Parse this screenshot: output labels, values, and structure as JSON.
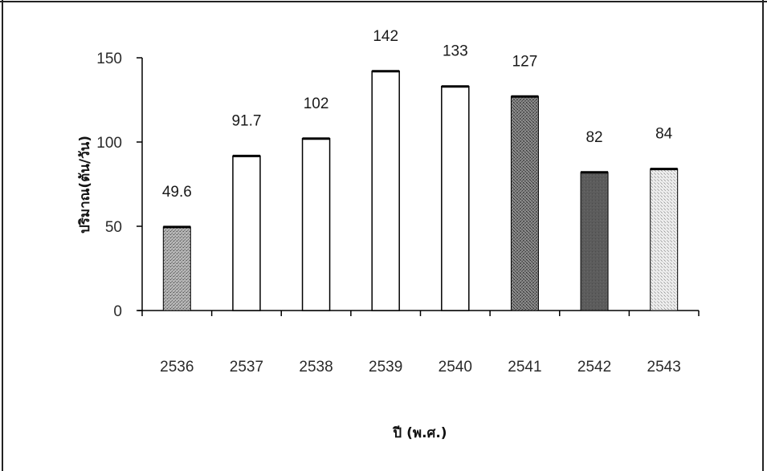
{
  "chart_data": {
    "type": "bar",
    "title": "",
    "xlabel": "ปี (พ.ศ.)",
    "ylabel": "ปริมาณ(ตัน/วัน)",
    "categories": [
      "2536",
      "2537",
      "2538",
      "2539",
      "2540",
      "2541",
      "2542",
      "2543"
    ],
    "values": [
      49.6,
      91.7,
      102,
      142,
      133,
      127,
      82,
      84
    ],
    "data_labels": [
      "49.6",
      "91.7",
      "102",
      "142",
      "133",
      "127",
      "82",
      "84"
    ],
    "ylim": [
      0,
      150
    ],
    "yticks": [
      "0",
      "50",
      "100",
      "150"
    ],
    "grid": false,
    "legend": "none",
    "bar_styles": [
      "stipple",
      "outline",
      "outline",
      "outline",
      "outline",
      "dark-stipple",
      "dark-solid",
      "light-stipple"
    ],
    "colors": {
      "outline": "#000000",
      "stipple": "#a8a8a8",
      "dark_stipple": "#6e6e6e",
      "dark_solid": "#5a5a5a",
      "light_stipple": "#dcdcdc"
    }
  }
}
